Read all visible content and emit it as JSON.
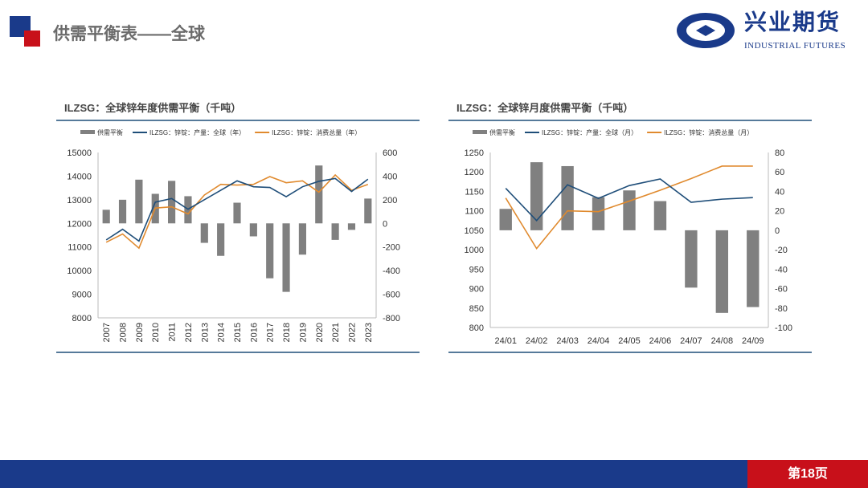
{
  "header": {
    "title": "供需平衡表——全球",
    "logo_cn": "兴业期货",
    "logo_en": "INDUSTRIAL FUTURES"
  },
  "footer": {
    "page": "第18页"
  },
  "colors": {
    "bar": "#808080",
    "production": "#1f4e79",
    "consumption": "#e08a2e",
    "brand_blue": "#1a3a8a",
    "brand_red": "#c8101a"
  },
  "chart_data": [
    {
      "type": "bar+line",
      "title": "ILZSG：全球锌年度供需平衡（千吨）",
      "categories": [
        "2007",
        "2008",
        "2009",
        "2010",
        "2011",
        "2012",
        "2013",
        "2014",
        "2015",
        "2016",
        "2017",
        "2018",
        "2019",
        "2020",
        "2021",
        "2022",
        "2023"
      ],
      "ylim_left": [
        8000,
        15000
      ],
      "yticks_left": [
        "15000",
        "14000",
        "13000",
        "12000",
        "11000",
        "10000",
        "9000",
        "8000"
      ],
      "ylim_right": [
        -800,
        600
      ],
      "yticks_right": [
        "600",
        "400",
        "200",
        "0",
        "-200",
        "-400",
        "-600",
        "-800"
      ],
      "legend": "top",
      "series": [
        {
          "name": "供需平衡",
          "kind": "bar",
          "axis": "right",
          "values": [
            115,
            200,
            370,
            250,
            360,
            230,
            -165,
            -275,
            175,
            -110,
            -465,
            -580,
            -265,
            490,
            -140,
            -55,
            210
          ]
        },
        {
          "name": "ILZSG：锌锭：产量：全球（年）",
          "kind": "line",
          "axis": "left",
          "values": [
            11300,
            11750,
            11250,
            12900,
            13050,
            12600,
            13000,
            13400,
            13800,
            13550,
            13520,
            13130,
            13550,
            13780,
            13900,
            13350,
            13870
          ]
        },
        {
          "name": "ILZSG：锌锭：消费总量（年）",
          "kind": "line",
          "axis": "left",
          "values": [
            11200,
            11550,
            10950,
            12650,
            12700,
            12400,
            13200,
            13650,
            13620,
            13650,
            13980,
            13720,
            13800,
            13320,
            14050,
            13400,
            13650
          ]
        }
      ]
    },
    {
      "type": "bar+line",
      "title": "ILZSG：全球锌月度供需平衡（千吨）",
      "categories": [
        "24/01",
        "24/02",
        "24/03",
        "24/04",
        "24/05",
        "24/06",
        "24/07",
        "24/08",
        "24/09"
      ],
      "ylim_left": [
        800,
        1250
      ],
      "yticks_left": [
        "1250",
        "1200",
        "1150",
        "1100",
        "1050",
        "1000",
        "950",
        "900",
        "850",
        "800"
      ],
      "ylim_right": [
        -100,
        80
      ],
      "yticks_right": [
        "80",
        "60",
        "40",
        "20",
        "0",
        "-20",
        "-40",
        "-60",
        "-80",
        "-100"
      ],
      "legend": "top",
      "series": [
        {
          "name": "供需平衡",
          "kind": "bar",
          "axis": "right",
          "values": [
            22,
            70,
            66,
            34,
            41,
            30,
            -59,
            -85,
            -79
          ]
        },
        {
          "name": "ILZSG：锌锭：产量：全球（月）",
          "kind": "line",
          "axis": "left",
          "values": [
            1158,
            1075,
            1167,
            1132,
            1165,
            1182,
            1122,
            1130,
            1134
          ]
        },
        {
          "name": "ILZSG：锌锭：消费总量（月）",
          "kind": "line",
          "axis": "left",
          "values": [
            1133,
            1003,
            1100,
            1098,
            1125,
            1153,
            1183,
            1215,
            1215
          ]
        }
      ]
    }
  ]
}
